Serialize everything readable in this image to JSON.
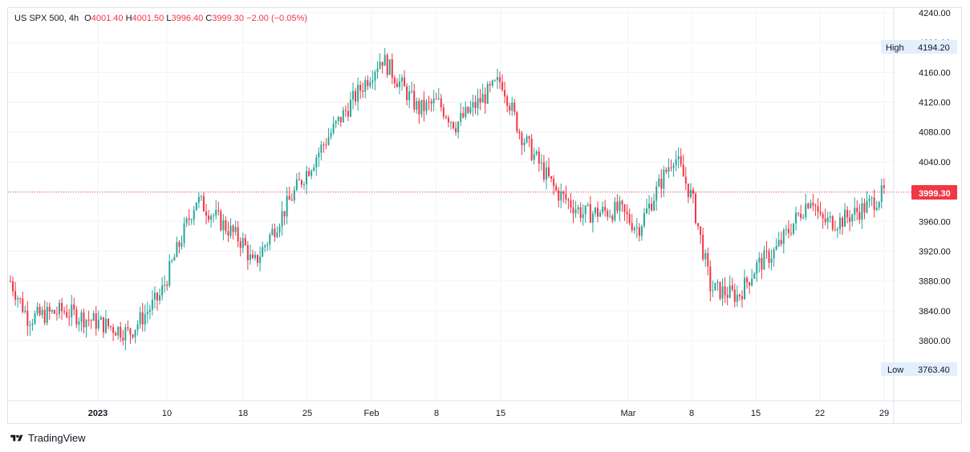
{
  "legend": {
    "symbol": "US SPX 500, 4h",
    "open_label": "O",
    "open": "4001.40",
    "high_label": "H",
    "high": "4001.50",
    "low_label": "L",
    "low": "3996.40",
    "close_label": "C",
    "close": "3999.30",
    "change": "−2.00 (−0.05%)"
  },
  "price_tag": "3999.30",
  "high_marker": {
    "label": "High",
    "value": "4194.20"
  },
  "low_marker": {
    "label": "Low",
    "value": "3763.40"
  },
  "footer_brand": "TradingView",
  "colors": {
    "up": "#26a69a",
    "down": "#f23645",
    "grid": "#f0f3fa"
  },
  "chart_data": {
    "type": "candlestick",
    "symbol": "US SPX 500",
    "interval": "4h",
    "ylim": [
      3730,
      4250
    ],
    "y_ticks": [
      4240,
      4200,
      4160,
      4120,
      4080,
      4040,
      4000,
      3960,
      3920,
      3880,
      3840,
      3800
    ],
    "x_ticks": [
      "2023",
      "10",
      "18",
      "25",
      "Feb",
      "8",
      "15",
      "Mar",
      "8",
      "15",
      "22",
      "29"
    ],
    "last_price": 3999.3,
    "session_high": 4194.2,
    "session_low": 3763.4,
    "grid": true,
    "key_points": [
      {
        "date": "2022-12-28",
        "close": 3830
      },
      {
        "date": "2022-12-30",
        "close": 3840
      },
      {
        "date": "2023-01-05",
        "close": 3810
      },
      {
        "date": "2023-01-09",
        "close": 3860
      },
      {
        "date": "2023-01-13",
        "close": 3990
      },
      {
        "date": "2023-01-18",
        "close": 3930
      },
      {
        "date": "2023-01-19",
        "close": 3900
      },
      {
        "date": "2023-01-24",
        "close": 4010
      },
      {
        "date": "2023-01-27",
        "close": 4070
      },
      {
        "date": "2023-02-02",
        "close": 4180
      },
      {
        "date": "2023-02-06",
        "close": 4110
      },
      {
        "date": "2023-02-08",
        "close": 4120
      },
      {
        "date": "2023-02-10",
        "close": 4090
      },
      {
        "date": "2023-02-15",
        "close": 4150
      },
      {
        "date": "2023-02-17",
        "close": 4080
      },
      {
        "date": "2023-02-21",
        "close": 4000
      },
      {
        "date": "2023-02-24",
        "close": 3970
      },
      {
        "date": "2023-02-28",
        "close": 3975
      },
      {
        "date": "2023-03-02",
        "close": 3950
      },
      {
        "date": "2023-03-06",
        "close": 4050
      },
      {
        "date": "2023-03-08",
        "close": 3990
      },
      {
        "date": "2023-03-10",
        "close": 3870
      },
      {
        "date": "2023-03-13",
        "close": 3860
      },
      {
        "date": "2023-03-15",
        "close": 3900
      },
      {
        "date": "2023-03-17",
        "close": 3920
      },
      {
        "date": "2023-03-21",
        "close": 3995
      },
      {
        "date": "2023-03-22",
        "close": 3960
      },
      {
        "date": "2023-03-24",
        "close": 3960
      },
      {
        "date": "2023-03-27",
        "close": 3980
      },
      {
        "date": "2023-03-29",
        "close": 3999.3
      }
    ]
  }
}
